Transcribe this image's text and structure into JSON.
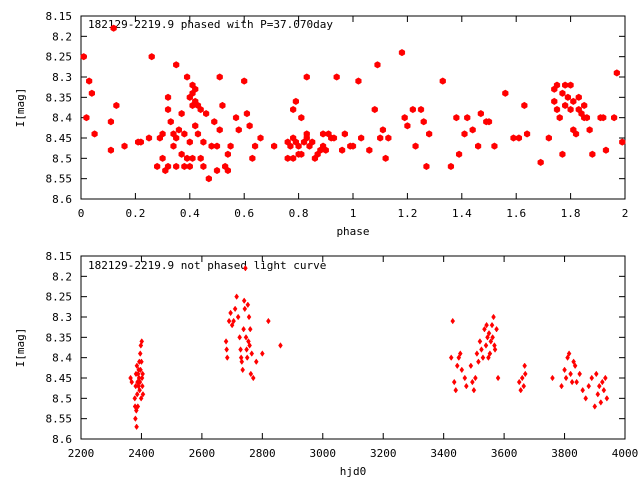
{
  "colors": {
    "point": "#ff0000",
    "axis": "#000000",
    "background": "#ffffff"
  },
  "chart_data": [
    {
      "type": "scatter",
      "title": "182129-2219.9 phased with P=37.070day",
      "xlabel": "phase",
      "ylabel": "I[mag]",
      "xlim": [
        0,
        2
      ],
      "ylim": [
        8.15,
        8.6
      ],
      "y_inverted": true,
      "grid": false,
      "marker": "filled hexagon",
      "xticks": [
        "0",
        "0.2",
        "0.4",
        "0.6",
        "0.8",
        "1",
        "1.2",
        "1.4",
        "1.6",
        "1.8",
        "2"
      ],
      "yticks": [
        "8.15",
        "8.2",
        "8.25",
        "8.3",
        "8.35",
        "8.4",
        "8.45",
        "8.5",
        "8.55",
        "8.6"
      ],
      "points": [
        [
          0.01,
          8.25
        ],
        [
          0.02,
          8.4
        ],
        [
          0.03,
          8.31
        ],
        [
          0.04,
          8.34
        ],
        [
          0.05,
          8.44
        ],
        [
          0.11,
          8.41
        ],
        [
          0.11,
          8.48
        ],
        [
          0.12,
          8.18
        ],
        [
          0.13,
          8.37
        ],
        [
          0.16,
          8.47
        ],
        [
          0.21,
          8.46
        ],
        [
          0.22,
          8.46
        ],
        [
          0.25,
          8.45
        ],
        [
          0.26,
          8.25
        ],
        [
          0.28,
          8.52
        ],
        [
          0.29,
          8.45
        ],
        [
          0.3,
          8.5
        ],
        [
          0.3,
          8.44
        ],
        [
          0.31,
          8.53
        ],
        [
          0.32,
          8.35
        ],
        [
          0.32,
          8.38
        ],
        [
          0.32,
          8.52
        ],
        [
          0.33,
          8.41
        ],
        [
          0.34,
          8.44
        ],
        [
          0.34,
          8.47
        ],
        [
          0.35,
          8.27
        ],
        [
          0.35,
          8.45
        ],
        [
          0.35,
          8.52
        ],
        [
          0.36,
          8.43
        ],
        [
          0.37,
          8.39
        ],
        [
          0.37,
          8.49
        ],
        [
          0.38,
          8.52
        ],
        [
          0.38,
          8.44
        ],
        [
          0.39,
          8.3
        ],
        [
          0.39,
          8.5
        ],
        [
          0.4,
          8.35
        ],
        [
          0.4,
          8.46
        ],
        [
          0.4,
          8.52
        ],
        [
          0.41,
          8.32
        ],
        [
          0.41,
          8.34
        ],
        [
          0.41,
          8.37
        ],
        [
          0.41,
          8.5
        ],
        [
          0.42,
          8.33
        ],
        [
          0.42,
          8.36
        ],
        [
          0.42,
          8.42
        ],
        [
          0.43,
          8.37
        ],
        [
          0.43,
          8.44
        ],
        [
          0.44,
          8.38
        ],
        [
          0.44,
          8.5
        ],
        [
          0.45,
          8.46
        ],
        [
          0.45,
          8.52
        ],
        [
          0.46,
          8.39
        ],
        [
          0.47,
          8.55
        ],
        [
          0.48,
          8.47
        ],
        [
          0.49,
          8.41
        ],
        [
          0.5,
          8.47
        ],
        [
          0.5,
          8.53
        ],
        [
          0.51,
          8.3
        ],
        [
          0.51,
          8.43
        ],
        [
          0.52,
          8.37
        ],
        [
          0.53,
          8.52
        ],
        [
          0.54,
          8.49
        ],
        [
          0.54,
          8.53
        ],
        [
          0.55,
          8.47
        ],
        [
          0.57,
          8.4
        ],
        [
          0.58,
          8.43
        ],
        [
          0.6,
          8.31
        ],
        [
          0.61,
          8.39
        ],
        [
          0.62,
          8.42
        ],
        [
          0.63,
          8.5
        ],
        [
          0.64,
          8.47
        ],
        [
          0.66,
          8.45
        ],
        [
          0.71,
          8.47
        ],
        [
          0.76,
          8.5
        ],
        [
          0.76,
          8.46
        ],
        [
          0.77,
          8.47
        ],
        [
          0.78,
          8.38
        ],
        [
          0.78,
          8.45
        ],
        [
          0.78,
          8.5
        ],
        [
          0.79,
          8.36
        ],
        [
          0.79,
          8.46
        ],
        [
          0.8,
          8.49
        ],
        [
          0.8,
          8.47
        ],
        [
          0.81,
          8.49
        ],
        [
          0.81,
          8.4
        ],
        [
          0.82,
          8.46
        ],
        [
          0.83,
          8.44
        ],
        [
          0.83,
          8.45
        ],
        [
          0.83,
          8.3
        ],
        [
          0.84,
          8.47
        ],
        [
          0.85,
          8.46
        ],
        [
          0.86,
          8.5
        ],
        [
          0.87,
          8.49
        ],
        [
          0.88,
          8.48
        ],
        [
          0.89,
          8.47
        ],
        [
          0.89,
          8.44
        ],
        [
          0.9,
          8.48
        ],
        [
          0.91,
          8.44
        ],
        [
          0.92,
          8.45
        ],
        [
          0.93,
          8.45
        ],
        [
          0.94,
          8.3
        ],
        [
          0.96,
          8.48
        ],
        [
          0.97,
          8.44
        ],
        [
          0.99,
          8.47
        ],
        [
          1.0,
          8.47
        ],
        [
          1.02,
          8.31
        ],
        [
          1.03,
          8.45
        ],
        [
          1.06,
          8.48
        ],
        [
          1.08,
          8.38
        ],
        [
          1.09,
          8.27
        ],
        [
          1.1,
          8.45
        ],
        [
          1.11,
          8.43
        ],
        [
          1.12,
          8.5
        ],
        [
          1.13,
          8.45
        ],
        [
          1.18,
          8.24
        ],
        [
          1.19,
          8.4
        ],
        [
          1.2,
          8.42
        ],
        [
          1.22,
          8.38
        ],
        [
          1.23,
          8.47
        ],
        [
          1.25,
          8.38
        ],
        [
          1.26,
          8.41
        ],
        [
          1.27,
          8.52
        ],
        [
          1.28,
          8.44
        ],
        [
          1.33,
          8.31
        ],
        [
          1.36,
          8.52
        ],
        [
          1.38,
          8.4
        ],
        [
          1.39,
          8.49
        ],
        [
          1.41,
          8.44
        ],
        [
          1.42,
          8.4
        ],
        [
          1.44,
          8.43
        ],
        [
          1.46,
          8.47
        ],
        [
          1.47,
          8.39
        ],
        [
          1.49,
          8.41
        ],
        [
          1.5,
          8.41
        ],
        [
          1.52,
          8.47
        ],
        [
          1.56,
          8.34
        ],
        [
          1.59,
          8.45
        ],
        [
          1.61,
          8.45
        ],
        [
          1.63,
          8.37
        ],
        [
          1.64,
          8.44
        ],
        [
          1.69,
          8.51
        ],
        [
          1.72,
          8.45
        ],
        [
          1.74,
          8.33
        ],
        [
          1.74,
          8.36
        ],
        [
          1.75,
          8.32
        ],
        [
          1.75,
          8.38
        ],
        [
          1.76,
          8.4
        ],
        [
          1.77,
          8.34
        ],
        [
          1.77,
          8.49
        ],
        [
          1.78,
          8.32
        ],
        [
          1.78,
          8.37
        ],
        [
          1.79,
          8.35
        ],
        [
          1.8,
          8.32
        ],
        [
          1.8,
          8.38
        ],
        [
          1.81,
          8.36
        ],
        [
          1.81,
          8.43
        ],
        [
          1.82,
          8.44
        ],
        [
          1.83,
          8.35
        ],
        [
          1.83,
          8.38
        ],
        [
          1.84,
          8.39
        ],
        [
          1.85,
          8.37
        ],
        [
          1.85,
          8.4
        ],
        [
          1.86,
          8.4
        ],
        [
          1.87,
          8.43
        ],
        [
          1.88,
          8.49
        ],
        [
          1.91,
          8.4
        ],
        [
          1.92,
          8.4
        ],
        [
          1.93,
          8.48
        ],
        [
          1.96,
          8.4
        ],
        [
          1.97,
          8.29
        ],
        [
          1.99,
          8.46
        ]
      ]
    },
    {
      "type": "scatter",
      "title": "182129-2219.9 not phased light curve",
      "xlabel": "hjd0",
      "ylabel": "I[mag]",
      "xlim": [
        2200,
        4000
      ],
      "ylim": [
        8.15,
        8.6
      ],
      "y_inverted": true,
      "grid": false,
      "marker": "small filled diamond",
      "xticks": [
        "2200",
        "2400",
        "2600",
        "2800",
        "3000",
        "3200",
        "3400",
        "3600",
        "3800",
        "4000"
      ],
      "yticks": [
        "8.15",
        "8.2",
        "8.25",
        "8.3",
        "8.35",
        "8.4",
        "8.45",
        "8.5",
        "8.55",
        "8.6"
      ],
      "points": [
        [
          2364,
          8.45
        ],
        [
          2368,
          8.46
        ],
        [
          2378,
          8.5
        ],
        [
          2379,
          8.52
        ],
        [
          2380,
          8.55
        ],
        [
          2381,
          8.47
        ],
        [
          2382,
          8.44
        ],
        [
          2383,
          8.53
        ],
        [
          2384,
          8.57
        ],
        [
          2385,
          8.42
        ],
        [
          2386,
          8.49
        ],
        [
          2387,
          8.46
        ],
        [
          2388,
          8.52
        ],
        [
          2389,
          8.44
        ],
        [
          2390,
          8.47
        ],
        [
          2391,
          8.43
        ],
        [
          2392,
          8.45
        ],
        [
          2393,
          8.41
        ],
        [
          2394,
          8.48
        ],
        [
          2395,
          8.46
        ],
        [
          2396,
          8.39
        ],
        [
          2397,
          8.43
        ],
        [
          2398,
          8.37
        ],
        [
          2399,
          8.5
        ],
        [
          2400,
          8.41
        ],
        [
          2401,
          8.36
        ],
        [
          2402,
          8.45
        ],
        [
          2403,
          8.47
        ],
        [
          2404,
          8.44
        ],
        [
          2405,
          8.49
        ],
        [
          2680,
          8.36
        ],
        [
          2682,
          8.38
        ],
        [
          2684,
          8.4
        ],
        [
          2690,
          8.31
        ],
        [
          2695,
          8.29
        ],
        [
          2700,
          8.32
        ],
        [
          2705,
          8.31
        ],
        [
          2710,
          8.28
        ],
        [
          2715,
          8.25
        ],
        [
          2720,
          8.3
        ],
        [
          2725,
          8.35
        ],
        [
          2728,
          8.38
        ],
        [
          2730,
          8.4
        ],
        [
          2732,
          8.41
        ],
        [
          2735,
          8.43
        ],
        [
          2738,
          8.33
        ],
        [
          2740,
          8.26
        ],
        [
          2742,
          8.28
        ],
        [
          2744,
          8.18
        ],
        [
          2746,
          8.35
        ],
        [
          2748,
          8.38
        ],
        [
          2750,
          8.4
        ],
        [
          2752,
          8.27
        ],
        [
          2754,
          8.36
        ],
        [
          2756,
          8.3
        ],
        [
          2758,
          8.37
        ],
        [
          2760,
          8.33
        ],
        [
          2762,
          8.44
        ],
        [
          2765,
          8.39
        ],
        [
          2770,
          8.45
        ],
        [
          2780,
          8.41
        ],
        [
          2800,
          8.39
        ],
        [
          2820,
          8.31
        ],
        [
          2860,
          8.37
        ],
        [
          3425,
          8.4
        ],
        [
          3430,
          8.31
        ],
        [
          3435,
          8.46
        ],
        [
          3440,
          8.48
        ],
        [
          3445,
          8.42
        ],
        [
          3450,
          8.4
        ],
        [
          3455,
          8.39
        ],
        [
          3460,
          8.43
        ],
        [
          3470,
          8.45
        ],
        [
          3475,
          8.47
        ],
        [
          3490,
          8.42
        ],
        [
          3495,
          8.46
        ],
        [
          3500,
          8.48
        ],
        [
          3505,
          8.45
        ],
        [
          3510,
          8.39
        ],
        [
          3515,
          8.41
        ],
        [
          3520,
          8.36
        ],
        [
          3525,
          8.38
        ],
        [
          3530,
          8.4
        ],
        [
          3535,
          8.33
        ],
        [
          3540,
          8.37
        ],
        [
          3542,
          8.32
        ],
        [
          3545,
          8.35
        ],
        [
          3548,
          8.4
        ],
        [
          3550,
          8.34
        ],
        [
          3553,
          8.39
        ],
        [
          3556,
          8.36
        ],
        [
          3560,
          8.32
        ],
        [
          3562,
          8.35
        ],
        [
          3565,
          8.3
        ],
        [
          3568,
          8.37
        ],
        [
          3570,
          8.38
        ],
        [
          3575,
          8.33
        ],
        [
          3580,
          8.45
        ],
        [
          3650,
          8.46
        ],
        [
          3655,
          8.48
        ],
        [
          3660,
          8.45
        ],
        [
          3665,
          8.47
        ],
        [
          3668,
          8.42
        ],
        [
          3670,
          8.44
        ],
        [
          3760,
          8.45
        ],
        [
          3790,
          8.47
        ],
        [
          3800,
          8.43
        ],
        [
          3805,
          8.45
        ],
        [
          3810,
          8.4
        ],
        [
          3815,
          8.39
        ],
        [
          3820,
          8.44
        ],
        [
          3825,
          8.46
        ],
        [
          3830,
          8.41
        ],
        [
          3835,
          8.42
        ],
        [
          3840,
          8.46
        ],
        [
          3850,
          8.44
        ],
        [
          3860,
          8.48
        ],
        [
          3870,
          8.5
        ],
        [
          3880,
          8.47
        ],
        [
          3890,
          8.45
        ],
        [
          3900,
          8.52
        ],
        [
          3905,
          8.44
        ],
        [
          3910,
          8.49
        ],
        [
          3915,
          8.47
        ],
        [
          3920,
          8.51
        ],
        [
          3925,
          8.46
        ],
        [
          3930,
          8.48
        ],
        [
          3935,
          8.45
        ],
        [
          3940,
          8.5
        ]
      ]
    }
  ]
}
